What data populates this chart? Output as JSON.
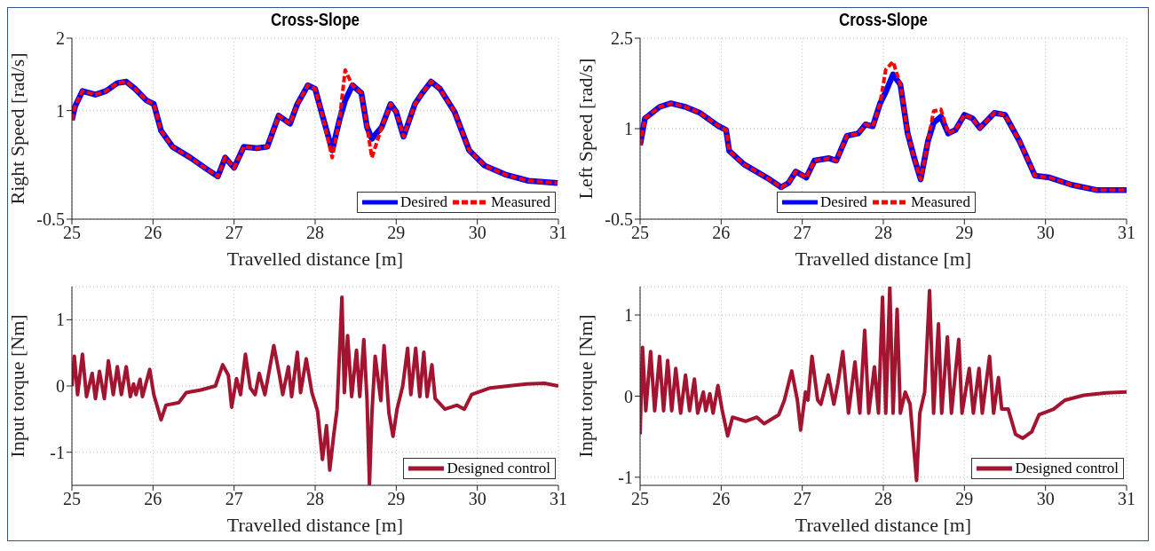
{
  "chart_data": [
    {
      "type": "line",
      "title": "Cross-Slope",
      "xlabel": "Travelled distance [m]",
      "ylabel": "Right Speed [rad/s]",
      "xlim": [
        25,
        31
      ],
      "xticks": [
        25,
        26,
        27,
        28,
        29,
        30,
        31
      ],
      "ylim": [
        -0.5,
        2
      ],
      "yticks": [
        -0.5,
        1,
        2
      ],
      "grid": true,
      "legend": "bottom right",
      "x": [
        25.0,
        25.04,
        25.13,
        25.29,
        25.42,
        25.56,
        25.67,
        25.78,
        25.92,
        26.01,
        26.1,
        26.24,
        26.46,
        26.64,
        26.8,
        26.89,
        27.0,
        27.12,
        27.28,
        27.41,
        27.55,
        27.69,
        27.78,
        27.91,
        28.0,
        28.09,
        28.21,
        28.3,
        28.37,
        28.46,
        28.57,
        28.64,
        28.7,
        28.82,
        28.93,
        29.0,
        29.09,
        29.23,
        29.32,
        29.43,
        29.54,
        29.72,
        29.9,
        30.09,
        30.36,
        30.63,
        30.99
      ],
      "series": [
        {
          "name": "Desired",
          "color": "#0000ff",
          "line_style": "solid",
          "values": [
            0.87,
            1.06,
            1.27,
            1.22,
            1.27,
            1.38,
            1.4,
            1.3,
            1.14,
            1.09,
            0.72,
            0.5,
            0.35,
            0.21,
            0.09,
            0.35,
            0.21,
            0.5,
            0.48,
            0.5,
            0.93,
            0.82,
            1.09,
            1.35,
            1.3,
            0.93,
            0.45,
            0.87,
            1.14,
            1.35,
            1.24,
            0.77,
            0.61,
            0.77,
            1.09,
            0.98,
            0.64,
            1.09,
            1.24,
            1.4,
            1.3,
            0.98,
            0.45,
            0.24,
            0.11,
            0.03,
            0.0
          ]
        },
        {
          "name": "Measured",
          "color": "#ff0000",
          "line_style": "dashed",
          "values": [
            0.87,
            1.06,
            1.27,
            1.22,
            1.27,
            1.38,
            1.4,
            1.3,
            1.14,
            1.09,
            0.72,
            0.5,
            0.35,
            0.21,
            0.09,
            0.35,
            0.21,
            0.5,
            0.48,
            0.5,
            0.93,
            0.82,
            1.09,
            1.35,
            1.3,
            0.93,
            0.35,
            0.87,
            1.56,
            1.35,
            1.24,
            0.77,
            0.35,
            0.77,
            1.09,
            0.98,
            0.64,
            1.09,
            1.24,
            1.4,
            1.3,
            0.98,
            0.45,
            0.24,
            0.11,
            0.03,
            0.0
          ]
        }
      ]
    },
    {
      "type": "line",
      "title": "Cross-Slope",
      "xlabel": "Travelled distance [m]",
      "ylabel": "Left Speed [rad/s]",
      "xlim": [
        25,
        31
      ],
      "xticks": [
        25,
        26,
        27,
        28,
        29,
        30,
        31
      ],
      "ylim": [
        -0.5,
        2.5
      ],
      "yticks": [
        -0.5,
        1,
        2.5
      ],
      "grid": true,
      "legend": "bottom",
      "x": [
        25.0,
        25.06,
        25.24,
        25.38,
        25.56,
        25.74,
        25.97,
        26.06,
        26.1,
        26.28,
        26.56,
        26.74,
        26.83,
        26.92,
        27.05,
        27.15,
        27.33,
        27.42,
        27.55,
        27.69,
        27.78,
        27.87,
        27.96,
        28.03,
        28.12,
        28.21,
        28.3,
        28.39,
        28.46,
        28.55,
        28.62,
        28.71,
        28.8,
        28.89,
        29.0,
        29.1,
        29.19,
        29.37,
        29.5,
        29.68,
        29.87,
        30.05,
        30.32,
        30.64,
        31.0
      ],
      "series": [
        {
          "name": "Desired",
          "color": "#0000ff",
          "line_style": "solid",
          "values": [
            0.73,
            1.17,
            1.36,
            1.42,
            1.36,
            1.26,
            1.04,
            0.98,
            0.63,
            0.41,
            0.19,
            0.03,
            0.1,
            0.29,
            0.19,
            0.47,
            0.51,
            0.47,
            0.88,
            0.92,
            1.07,
            1.04,
            1.42,
            1.61,
            1.9,
            1.73,
            0.92,
            0.47,
            0.16,
            0.79,
            1.1,
            1.2,
            0.92,
            0.98,
            1.23,
            1.17,
            1.01,
            1.26,
            1.23,
            0.79,
            0.22,
            0.19,
            0.07,
            -0.02,
            -0.02
          ]
        },
        {
          "name": "Measured",
          "color": "#ff0000",
          "line_style": "dashed",
          "values": [
            0.73,
            1.17,
            1.36,
            1.42,
            1.36,
            1.26,
            1.04,
            0.98,
            0.63,
            0.41,
            0.19,
            0.03,
            0.1,
            0.29,
            0.19,
            0.47,
            0.51,
            0.47,
            0.88,
            0.92,
            1.07,
            1.04,
            1.42,
            1.98,
            2.11,
            1.73,
            0.92,
            0.47,
            0.16,
            0.79,
            1.29,
            1.32,
            0.92,
            0.98,
            1.23,
            1.17,
            1.01,
            1.26,
            1.23,
            0.79,
            0.22,
            0.19,
            0.07,
            -0.02,
            -0.02
          ]
        }
      ]
    },
    {
      "type": "line",
      "xlabel": "Travelled distance [m]",
      "ylabel": "Input torque [Nm]",
      "xlim": [
        25,
        31
      ],
      "xticks": [
        25,
        26,
        27,
        28,
        29,
        30,
        31
      ],
      "ylim": [
        -1.5,
        1.5
      ],
      "yticks": [
        -1,
        0,
        1
      ],
      "grid": true,
      "legend": "bottom right",
      "x": [
        25.0,
        25.03,
        25.07,
        25.13,
        25.18,
        25.25,
        25.29,
        25.34,
        25.4,
        25.45,
        25.51,
        25.56,
        25.61,
        25.67,
        25.72,
        25.76,
        25.79,
        25.84,
        25.87,
        25.96,
        26.01,
        26.1,
        26.16,
        26.32,
        26.41,
        26.59,
        26.77,
        26.86,
        26.93,
        26.97,
        27.03,
        27.08,
        27.14,
        27.2,
        27.26,
        27.31,
        27.38,
        27.49,
        27.56,
        27.6,
        27.67,
        27.71,
        27.78,
        27.82,
        27.89,
        27.96,
        28.03,
        28.09,
        28.14,
        28.18,
        28.23,
        28.27,
        28.33,
        28.36,
        28.4,
        28.45,
        28.51,
        28.55,
        28.6,
        28.64,
        28.67,
        28.7,
        28.74,
        28.81,
        28.85,
        28.91,
        28.96,
        29.01,
        29.08,
        29.14,
        29.18,
        29.24,
        29.29,
        29.34,
        29.38,
        29.44,
        29.48,
        29.6,
        29.75,
        29.84,
        29.93,
        30.16,
        30.38,
        30.61,
        30.83,
        31.0
      ],
      "series": [
        {
          "name": "Designed control",
          "color": "#a2142f",
          "line_style": "solid",
          "values": [
            0.0,
            0.45,
            -0.13,
            0.48,
            -0.16,
            0.19,
            -0.19,
            0.22,
            -0.19,
            0.38,
            -0.13,
            0.29,
            -0.13,
            0.29,
            -0.16,
            0.03,
            -0.13,
            0.1,
            -0.16,
            0.25,
            -0.13,
            -0.51,
            -0.29,
            -0.25,
            -0.1,
            -0.06,
            0.0,
            0.32,
            0.16,
            -0.32,
            0.11,
            -0.13,
            0.48,
            -0.03,
            -0.13,
            0.19,
            -0.13,
            0.61,
            0.16,
            -0.13,
            0.29,
            -0.16,
            0.51,
            -0.1,
            0.41,
            -0.1,
            -0.38,
            -1.11,
            -0.6,
            -1.27,
            -0.73,
            -0.35,
            1.34,
            -0.1,
            0.76,
            -0.16,
            0.54,
            -0.16,
            0.7,
            -0.22,
            -1.48,
            -0.41,
            0.45,
            -0.22,
            0.61,
            -0.41,
            -0.76,
            -0.35,
            0.0,
            0.57,
            -0.13,
            0.57,
            -0.16,
            0.51,
            -0.16,
            0.32,
            -0.19,
            -0.35,
            -0.29,
            -0.35,
            -0.13,
            -0.03,
            0.0,
            0.03,
            0.04,
            0.0
          ]
        }
      ]
    },
    {
      "type": "line",
      "xlabel": "Travelled distance [m]",
      "ylabel": "Input torque [Nm]",
      "xlim": [
        25,
        31
      ],
      "xticks": [
        25,
        26,
        27,
        28,
        29,
        30,
        31
      ],
      "ylim": [
        -1.1,
        1.35
      ],
      "yticks": [
        -1,
        0,
        1
      ],
      "grid": true,
      "legend": "bottom right",
      "x": [
        25.0,
        25.03,
        25.07,
        25.13,
        25.18,
        25.24,
        25.29,
        25.34,
        25.39,
        25.44,
        25.5,
        25.56,
        25.61,
        25.67,
        25.71,
        25.78,
        25.81,
        25.86,
        25.9,
        25.96,
        26.01,
        26.08,
        26.14,
        26.3,
        26.44,
        26.53,
        26.71,
        26.78,
        26.87,
        26.94,
        26.98,
        27.04,
        27.07,
        27.12,
        27.19,
        27.23,
        27.32,
        27.39,
        27.44,
        27.5,
        27.57,
        27.65,
        27.71,
        27.77,
        27.82,
        27.89,
        27.94,
        27.99,
        28.03,
        28.08,
        28.12,
        28.17,
        28.21,
        28.27,
        28.33,
        28.41,
        28.45,
        28.51,
        28.57,
        28.62,
        28.68,
        28.72,
        28.79,
        28.84,
        28.93,
        28.97,
        29.06,
        29.11,
        29.18,
        29.22,
        29.31,
        29.36,
        29.42,
        29.46,
        29.54,
        29.63,
        29.72,
        29.83,
        29.92,
        30.1,
        30.24,
        30.47,
        30.75,
        31.0
      ],
      "series": [
        {
          "name": "Designed control",
          "color": "#a2142f",
          "line_style": "solid",
          "values": [
            -0.47,
            0.6,
            -0.18,
            0.55,
            -0.18,
            0.49,
            -0.18,
            0.44,
            -0.18,
            0.34,
            -0.21,
            0.26,
            -0.18,
            0.21,
            -0.21,
            0.05,
            -0.18,
            0.03,
            -0.21,
            0.13,
            -0.16,
            -0.49,
            -0.26,
            -0.31,
            -0.26,
            -0.34,
            -0.23,
            -0.05,
            0.31,
            -0.05,
            -0.42,
            0.05,
            -0.05,
            0.49,
            -0.05,
            -0.1,
            0.26,
            -0.1,
            0.16,
            0.55,
            -0.21,
            0.42,
            -0.21,
            0.81,
            -0.21,
            0.36,
            -0.21,
            1.22,
            -0.21,
            1.35,
            -0.21,
            1.07,
            -0.21,
            0.05,
            -0.1,
            -1.04,
            -0.21,
            0.05,
            1.3,
            -0.21,
            0.89,
            -0.21,
            0.73,
            -0.21,
            0.7,
            -0.21,
            0.34,
            -0.21,
            0.34,
            -0.21,
            0.49,
            -0.21,
            0.23,
            -0.16,
            -0.16,
            -0.47,
            -0.52,
            -0.44,
            -0.23,
            -0.16,
            -0.05,
            0.01,
            0.04,
            0.05
          ]
        }
      ]
    }
  ]
}
